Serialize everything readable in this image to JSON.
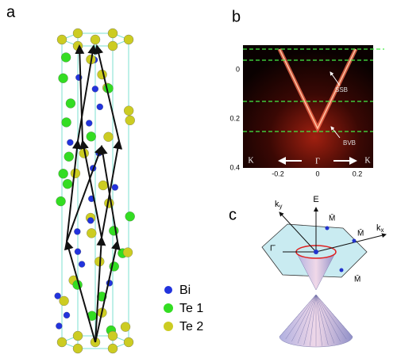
{
  "panel_a": {
    "label": "a",
    "legend": [
      "Bi",
      "Te 1",
      "Te 2"
    ]
  },
  "panel_b": {
    "label": "b",
    "yticks": [
      0,
      0.2,
      0.4
    ],
    "xticks": [
      -0.2,
      0,
      0.2
    ],
    "annotations": [
      "SSB",
      "BVB"
    ],
    "bottom_labels": [
      "K",
      "Γ",
      "K"
    ]
  },
  "panel_c": {
    "label": "c",
    "energy": "E",
    "ky": {
      "base": "k",
      "sub": "y"
    },
    "kx": {
      "base": "k",
      "sub": "x"
    },
    "points": [
      "M̄",
      "M̄",
      "M̄",
      "Γ̄"
    ]
  }
}
